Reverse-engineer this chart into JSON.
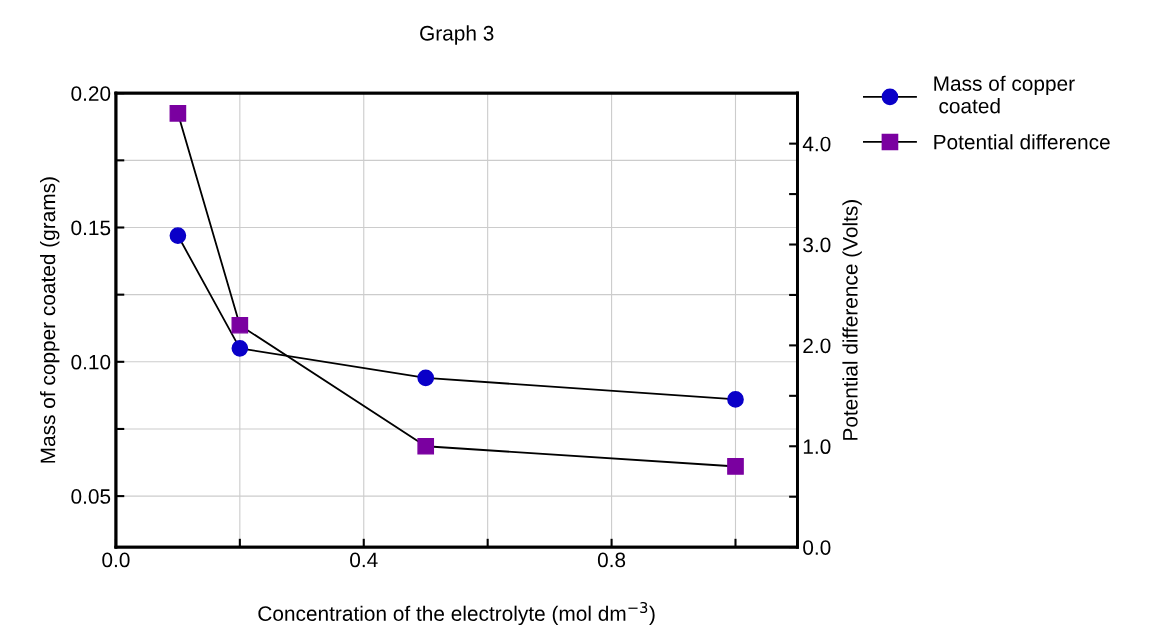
{
  "chart_data": {
    "type": "line",
    "title": "Graph 3",
    "xlabel": "Concentration of the electrolyte (mol dm$^{−3}$)",
    "ylabel": "Mass of copper coated (grams)",
    "y2label": "Potential difference (Volts)",
    "x": [
      0.1,
      0.2,
      0.5,
      1.0
    ],
    "series": [
      {
        "name": "Mass of copper\n coated",
        "color": "#0a00c8",
        "values": [
          0.147,
          0.105,
          0.094,
          0.086
        ],
        "marker": "circle"
      },
      {
        "name": "Potential difference",
        "color": "#7a00a0",
        "values": [
          4.3,
          2.2,
          1.0,
          0.8
        ],
        "marker": "square",
        "axis": "y2"
      }
    ],
    "xlim": [
      0,
      1.1
    ],
    "xticks": [
      {
        "value": 0.0,
        "label": "0.0"
      },
      {
        "value": 0.2,
        "label": null
      },
      0.4,
      {
        "value": 0.6,
        "label": null
      },
      0.8,
      {
        "value": 1.0,
        "label": null
      }
    ],
    "ylim": [
      0.031,
      0.2
    ],
    "yticks": [
      0.05,
      {
        "value": 0.075,
        "label": null
      },
      {
        "value": 0.1,
        "label": "0.10"
      },
      {
        "value": 0.125,
        "label": null
      },
      {
        "value": 0.15,
        "label": "0.15"
      },
      {
        "value": 0.175,
        "label": null
      },
      {
        "value": 0.2,
        "label": "0.20"
      }
    ],
    "y2lim": [
      0,
      4.5
    ],
    "y2ticks": [
      {
        "value": 0,
        "label": "0.0"
      },
      {
        "value": 0.5,
        "label": null
      },
      {
        "value": 1,
        "label": "1.0"
      },
      {
        "value": 1.5,
        "label": null
      },
      {
        "value": 2,
        "label": "2.0"
      },
      {
        "value": 2.5,
        "label": null
      },
      {
        "value": 3,
        "label": "3.0"
      },
      {
        "value": 3.5,
        "label": null
      },
      {
        "value": 4,
        "label": "4.0"
      }
    ],
    "grid": true,
    "legend": "top right",
    "line_style": "solid"
  }
}
